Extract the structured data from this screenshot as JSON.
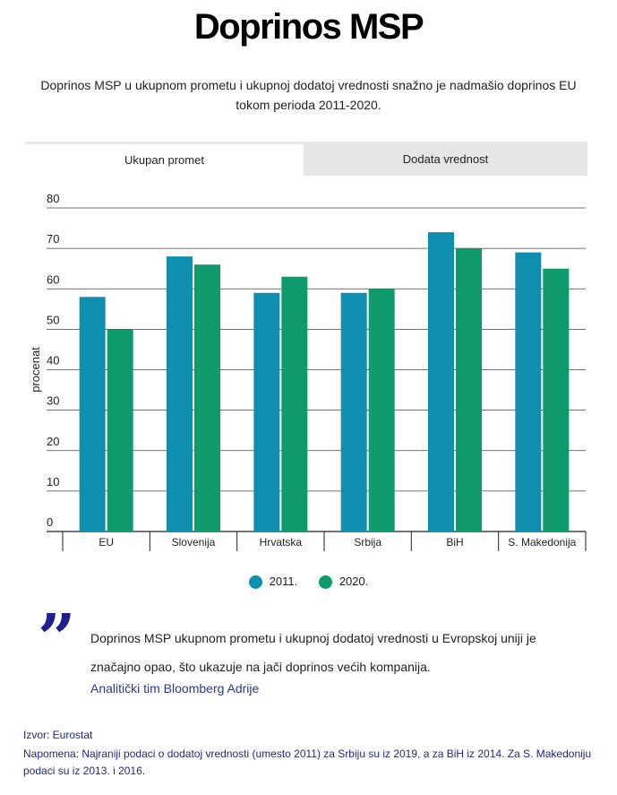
{
  "header": {
    "title": "Doprinos MSP",
    "subtitle": "Doprinos MSP u ukupnom prometu i ukupnoj dodatoj vrednosti snažno je nadmašio doprinos EU tokom perioda 2011-2020."
  },
  "tabs": [
    {
      "label": "Ukupan promet",
      "active": true
    },
    {
      "label": "Dodata vrednost",
      "active": false
    }
  ],
  "chart_data": {
    "type": "bar",
    "title": "",
    "xlabel": "",
    "ylabel": "procenat",
    "ylim": [
      0,
      80
    ],
    "yticks": [
      0,
      10,
      20,
      30,
      40,
      50,
      60,
      70,
      80
    ],
    "categories": [
      "EU",
      "Slovenija",
      "Hrvatska",
      "Srbija",
      "BiH",
      "S. Makedonija"
    ],
    "series": [
      {
        "name": "2011.",
        "color": "#0f8fb0",
        "values": [
          58,
          68,
          59,
          59,
          74,
          69
        ]
      },
      {
        "name": "2020.",
        "color": "#0f9a6e",
        "values": [
          50,
          66,
          63,
          60,
          70,
          65
        ]
      }
    ],
    "grid": true,
    "legend": "bottom-center"
  },
  "quote": {
    "text": "Doprinos  MSP ukupnom prometu i ukupnoj dodatoj vrednosti u Evropskoj uniji je značajno opao, što ukazuje na jači doprinos većih kompanija.",
    "author": "Analitički tim Bloomberg Adrije"
  },
  "footer": {
    "source": "Izvor: Eurostat",
    "note": "Napomena: Najraniji podaci o dodatoj vrednosti (umesto 2011) za Srbiju su iz 2019, a za BiH iz 2014. Za S. Makedoniju podaci su iz 2013. i 2016."
  }
}
